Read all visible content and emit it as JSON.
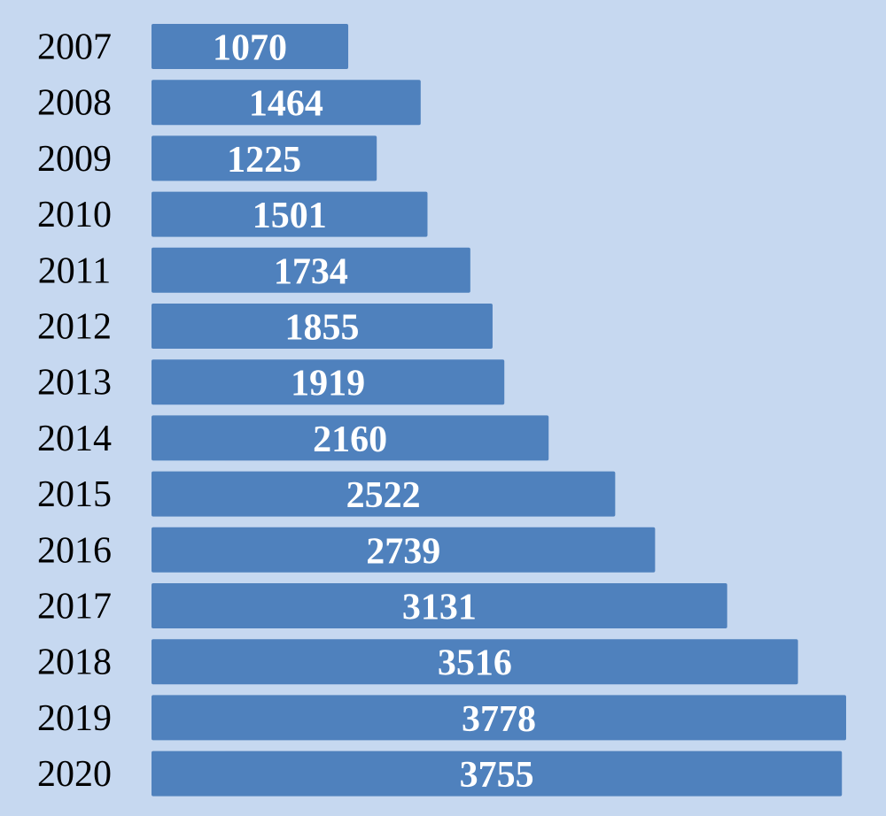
{
  "chart_data": {
    "type": "bar",
    "orientation": "horizontal",
    "categories": [
      "2007",
      "2008",
      "2009",
      "2010",
      "2011",
      "2012",
      "2013",
      "2014",
      "2015",
      "2016",
      "2017",
      "2018",
      "2019",
      "2020"
    ],
    "values": [
      1070,
      1464,
      1225,
      1501,
      1734,
      1855,
      1919,
      2160,
      2522,
      2739,
      3131,
      3516,
      3778,
      3755
    ],
    "title": "",
    "xlabel": "",
    "ylabel": "",
    "grid": false,
    "legend": "none",
    "data_labels": true
  },
  "colors": {
    "background": "#c6d8f0",
    "bar": "#4f81bd",
    "data_label": "#ffffff",
    "tick_label": "#000000"
  }
}
